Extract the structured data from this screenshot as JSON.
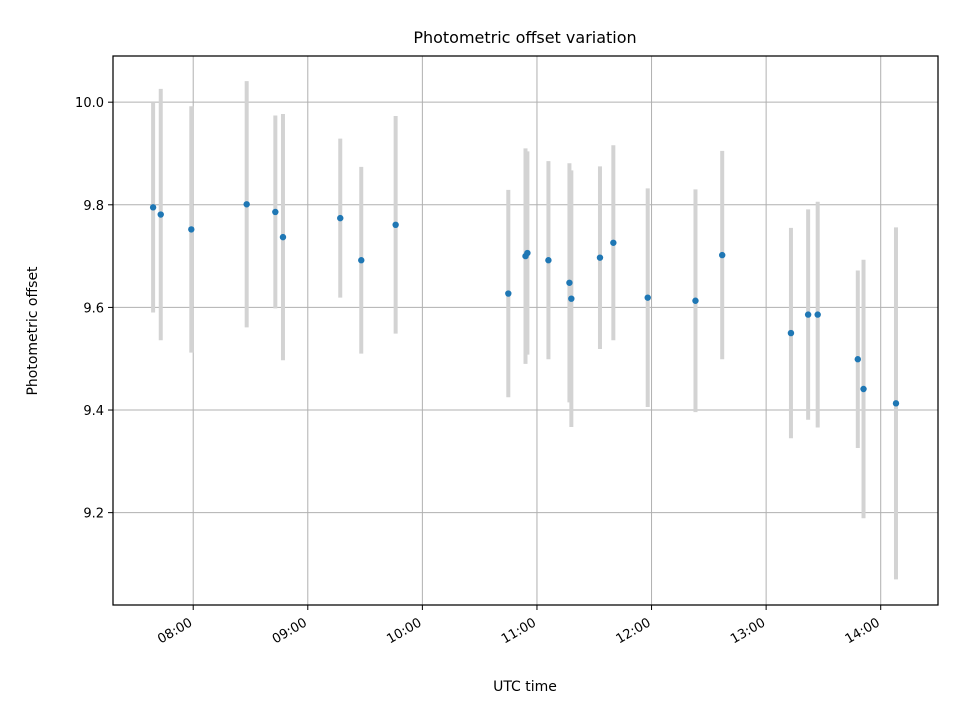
{
  "chart_data": {
    "type": "scatter",
    "title": "Photometric offset variation",
    "xlabel": "UTC time",
    "ylabel": "Photometric offset",
    "grid": true,
    "x_tick_labels": [
      "08:00",
      "09:00",
      "10:00",
      "11:00",
      "12:00",
      "13:00",
      "14:00"
    ],
    "y_tick_labels": [
      "9.2",
      "9.4",
      "9.6",
      "9.8",
      "10.0"
    ],
    "xlim": [
      "07:18",
      "14:30"
    ],
    "ylim": [
      9.02,
      10.09
    ],
    "colors": {
      "point": "#1f77b4",
      "errorbar": "#d3d3d3",
      "grid": "#b0b0b0"
    },
    "points": [
      {
        "x": "07:39",
        "y": 9.795,
        "err": 0.205
      },
      {
        "x": "07:43",
        "y": 9.781,
        "err": 0.245
      },
      {
        "x": "07:59",
        "y": 9.752,
        "err": 0.24
      },
      {
        "x": "08:28",
        "y": 9.801,
        "err": 0.24
      },
      {
        "x": "08:43",
        "y": 9.786,
        "err": 0.188
      },
      {
        "x": "08:47",
        "y": 9.737,
        "err": 0.24
      },
      {
        "x": "09:17",
        "y": 9.774,
        "err": 0.155
      },
      {
        "x": "09:28",
        "y": 9.692,
        "err": 0.182
      },
      {
        "x": "09:46",
        "y": 9.761,
        "err": 0.212
      },
      {
        "x": "10:45",
        "y": 9.627,
        "err": 0.202
      },
      {
        "x": "10:54",
        "y": 9.7,
        "err": 0.21
      },
      {
        "x": "10:55",
        "y": 9.706,
        "err": 0.198
      },
      {
        "x": "11:06",
        "y": 9.692,
        "err": 0.193
      },
      {
        "x": "11:17",
        "y": 9.648,
        "err": 0.233
      },
      {
        "x": "11:18",
        "y": 9.617,
        "err": 0.25
      },
      {
        "x": "11:33",
        "y": 9.697,
        "err": 0.178
      },
      {
        "x": "11:40",
        "y": 9.726,
        "err": 0.19
      },
      {
        "x": "11:58",
        "y": 9.619,
        "err": 0.213
      },
      {
        "x": "12:23",
        "y": 9.613,
        "err": 0.217
      },
      {
        "x": "12:37",
        "y": 9.702,
        "err": 0.203
      },
      {
        "x": "13:13",
        "y": 9.55,
        "err": 0.205
      },
      {
        "x": "13:22",
        "y": 9.586,
        "err": 0.205
      },
      {
        "x": "13:27",
        "y": 9.586,
        "err": 0.22
      },
      {
        "x": "13:48",
        "y": 9.499,
        "err": 0.173
      },
      {
        "x": "13:51",
        "y": 9.441,
        "err": 0.252
      },
      {
        "x": "14:08",
        "y": 9.413,
        "err": 0.343
      }
    ]
  }
}
